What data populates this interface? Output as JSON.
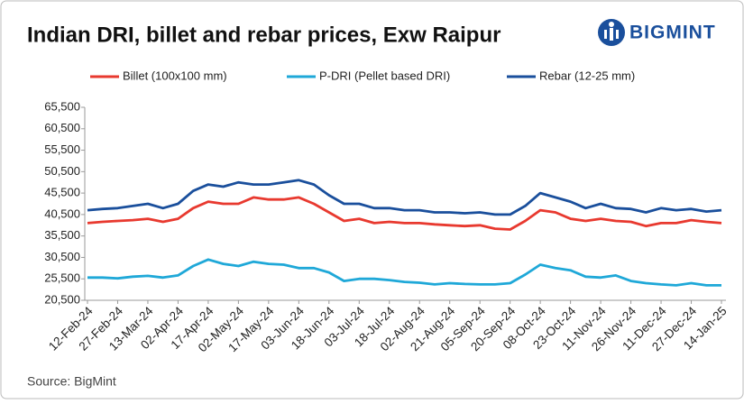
{
  "logo": "BIGMINT",
  "source": "Source: BigMint",
  "chart_data": {
    "type": "line",
    "title": "Indian DRI, billet and rebar prices, Exw Raipur",
    "legend": "top",
    "categories": [
      "12-Feb-24",
      null,
      "27-Feb-24",
      null,
      "13-Mar-24",
      null,
      "02-Apr-24",
      null,
      "17-Apr-24",
      null,
      "02-May-24",
      null,
      "17-May-24",
      null,
      "03-Jun-24",
      null,
      "18-Jun-24",
      null,
      "03-Jul-24",
      null,
      "18-Jul-24",
      null,
      "02-Aug-24",
      null,
      "21-Aug-24",
      null,
      "05-Sep-24",
      null,
      "20-Sep-24",
      null,
      "08-Oct-24",
      null,
      "23-Oct-24",
      null,
      "11-Nov-24",
      null,
      "26-Nov-24",
      null,
      "11-Dec-24",
      null,
      "27-Dec-24",
      null,
      "14-Jan-25"
    ],
    "series": [
      {
        "name": "Billet (100x100 mm)",
        "color": "#e8392f",
        "values": [
          38500,
          38800,
          39000,
          39200,
          39500,
          38800,
          39500,
          42000,
          43500,
          43000,
          43000,
          44500,
          44000,
          44000,
          44500,
          43000,
          41000,
          39000,
          39500,
          38500,
          38800,
          38500,
          38500,
          38200,
          38000,
          37800,
          38000,
          37200,
          37000,
          39000,
          41500,
          41000,
          39500,
          39000,
          39500,
          39000,
          38800,
          37800,
          38500,
          38500,
          39200,
          38800,
          38500
        ]
      },
      {
        "name": "P-DRI (Pellet based DRI)",
        "color": "#1fa8d8",
        "values": [
          25800,
          25800,
          25600,
          26000,
          26200,
          25800,
          26300,
          28500,
          30000,
          29000,
          28500,
          29500,
          29000,
          28800,
          28000,
          28000,
          27000,
          25000,
          25500,
          25500,
          25200,
          24800,
          24600,
          24200,
          24500,
          24300,
          24200,
          24200,
          24500,
          26500,
          28800,
          28000,
          27500,
          26000,
          25800,
          26300,
          25000,
          24500,
          24200,
          24000,
          24500,
          24000,
          24000
        ]
      },
      {
        "name": "Rebar (12-25 mm)",
        "color": "#1a4f9c",
        "values": [
          41500,
          41800,
          42000,
          42500,
          43000,
          42000,
          43000,
          46000,
          47500,
          47000,
          48000,
          47500,
          47500,
          48000,
          48500,
          47500,
          45000,
          43000,
          43000,
          42000,
          42000,
          41500,
          41500,
          41000,
          41000,
          40800,
          41000,
          40500,
          40500,
          42500,
          45500,
          44500,
          43500,
          42000,
          43000,
          42000,
          41800,
          41000,
          42000,
          41500,
          41800,
          41200,
          41500
        ]
      }
    ],
    "ylim": [
      20500,
      65500
    ],
    "yticks": [
      {
        "value": 20500,
        "label": "20,500"
      },
      {
        "value": 25500,
        "label": "25,500"
      },
      {
        "value": 30500,
        "label": "30,500"
      },
      {
        "value": 35500,
        "label": "35,500"
      },
      {
        "value": 40500,
        "label": "40,500"
      },
      {
        "value": 45500,
        "label": "45,500"
      },
      {
        "value": 50500,
        "label": "50,500"
      },
      {
        "value": 55500,
        "label": "55,500"
      },
      {
        "value": 60500,
        "label": "60,500"
      },
      {
        "value": 65500,
        "label": "65,500"
      }
    ],
    "grid": false
  }
}
